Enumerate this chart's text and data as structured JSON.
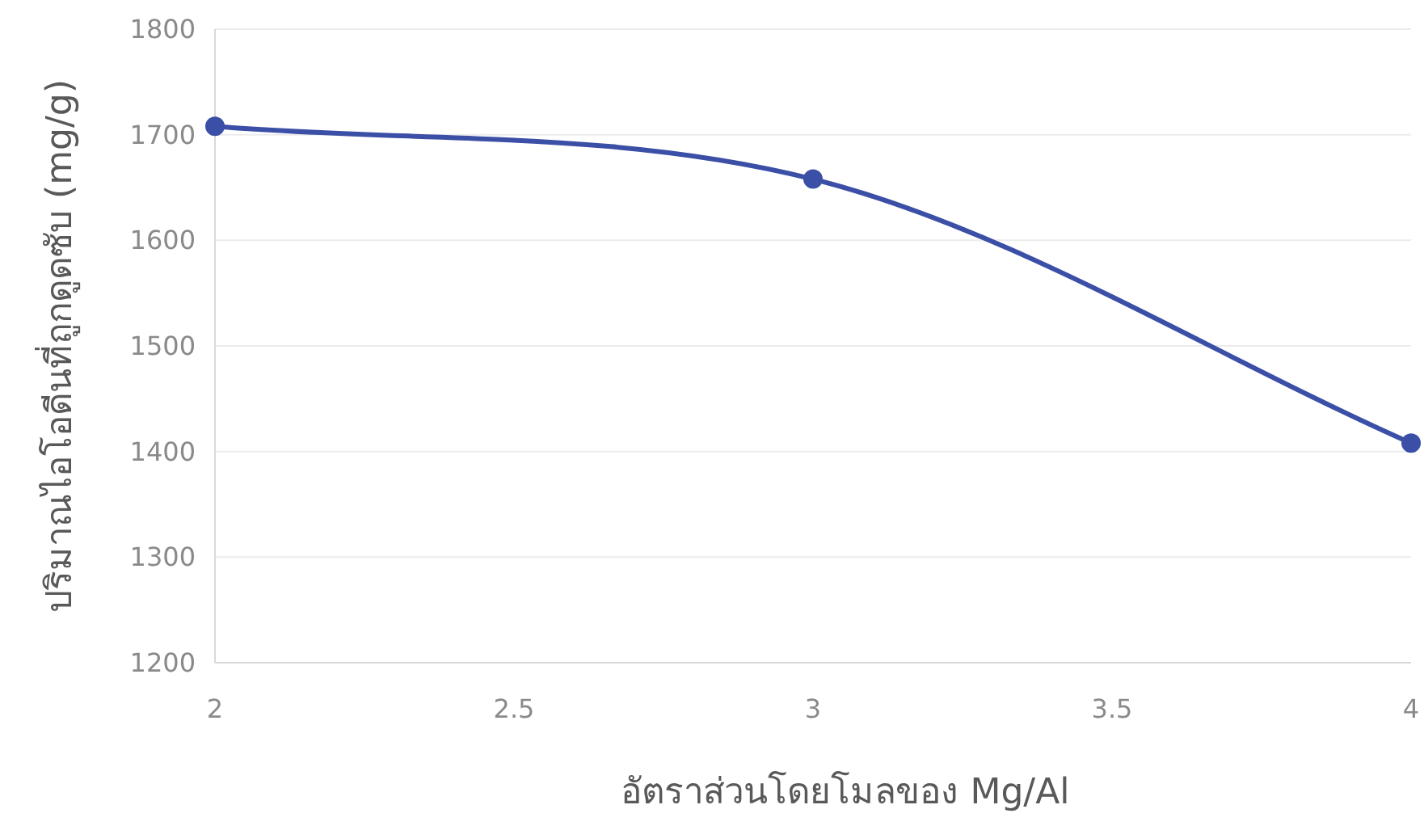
{
  "chart_data": {
    "type": "line",
    "xlabel": "อัตราส่วนโดยโมลของ Mg/Al",
    "ylabel": "ปริมาณไอโอดีนที่ถูกดูดซับ (mg/g)",
    "x": [
      2,
      3,
      4
    ],
    "series": [
      {
        "color": "#3b4fa6",
        "values": [
          1708,
          1658,
          1408
        ]
      }
    ],
    "xlim": [
      2,
      4
    ],
    "xticks": [
      2,
      2.5,
      3,
      3.5,
      4
    ],
    "ylim": [
      1200,
      1800
    ],
    "yticks": [
      1200,
      1300,
      1400,
      1500,
      1600,
      1700,
      1800
    ],
    "grid": "y",
    "marker": "circle",
    "line_style": "solid"
  }
}
